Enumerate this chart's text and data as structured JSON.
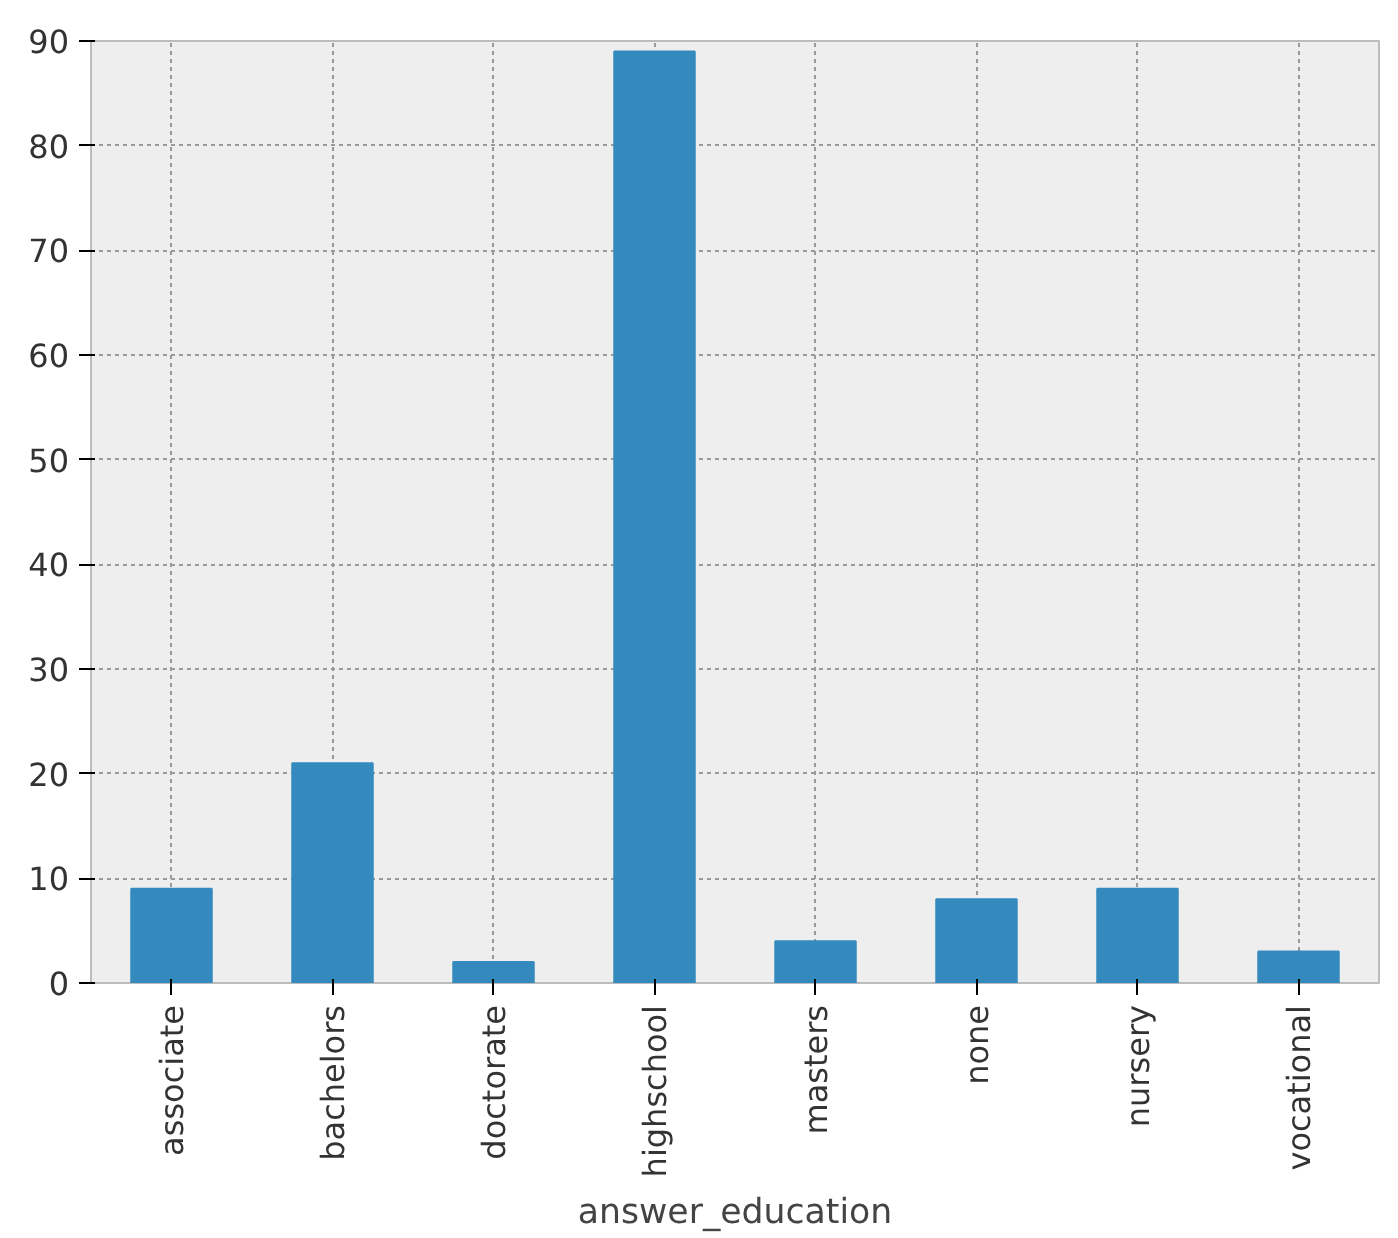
{
  "chart_data": {
    "type": "bar",
    "xlabel": "answer_education",
    "categories": [
      "associate",
      "bachelors",
      "doctorate",
      "highschool",
      "masters",
      "none",
      "nursery",
      "vocational"
    ],
    "values": [
      9,
      21,
      2,
      89,
      4,
      8,
      9,
      3
    ],
    "color": "#348abd",
    "ylim": [
      0,
      90
    ],
    "yticks": [
      0,
      10,
      20,
      30,
      40,
      50,
      60,
      70,
      80,
      90
    ],
    "grid": true
  }
}
